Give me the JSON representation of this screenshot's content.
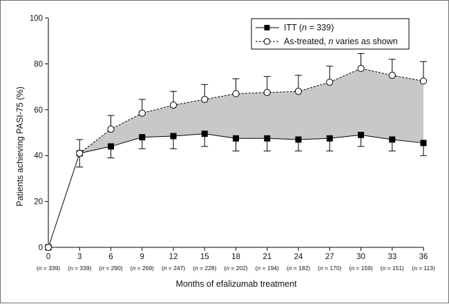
{
  "chart_data": {
    "type": "line",
    "xlabel": "Months of efalizumab treatment",
    "ylabel": "Patients achieving PASI-75 (%)",
    "xlim": [
      0,
      36
    ],
    "ylim": [
      0,
      100
    ],
    "x": [
      0,
      3,
      6,
      9,
      12,
      15,
      18,
      21,
      24,
      27,
      30,
      33,
      36
    ],
    "x_tick_labels": [
      "0",
      "3",
      "6",
      "9",
      "12",
      "15",
      "18",
      "21",
      "24",
      "27",
      "30",
      "33",
      "36"
    ],
    "y_ticks": [
      0,
      20,
      40,
      60,
      80,
      100
    ],
    "n_labels": [
      "(n = 339)",
      "(n = 339)",
      "(n = 290)",
      "(n = 269)",
      "(n = 247)",
      "(n = 228)",
      "(n = 202)",
      "(n = 194)",
      "(n = 182)",
      "(n = 170)",
      "(n = 159)",
      "(n = 151)",
      "(n = 113)"
    ],
    "series": [
      {
        "name": "ITT (n = 339)",
        "marker": "filled-square",
        "line": "solid",
        "values": [
          0,
          41,
          44,
          48,
          48.5,
          49.5,
          47.5,
          47.5,
          47,
          47.5,
          49,
          47,
          45.5
        ],
        "error_down": [
          0,
          6,
          5,
          5,
          5.5,
          5.5,
          5.5,
          5.5,
          5,
          5.5,
          5,
          5,
          5.5
        ]
      },
      {
        "name": "As-treated, n varies as shown",
        "marker": "open-circle",
        "line": "dashed",
        "values": [
          0,
          41,
          51.5,
          58.5,
          62,
          64.5,
          67,
          67.5,
          68,
          72,
          78,
          75,
          72.5
        ],
        "error_up": [
          0,
          6,
          6,
          6,
          6,
          6.5,
          6.5,
          7,
          7,
          7,
          6.5,
          7,
          8.5
        ]
      }
    ],
    "shaded_region": "between series",
    "legend": {
      "position": "top-right",
      "itt": {
        "pre": "ITT (",
        "n": "n",
        "post": " = 339)"
      },
      "as_treated": {
        "pre": "As-treated, ",
        "n": "n",
        "post": " varies as shown"
      }
    },
    "colors": {
      "fill": "#c8c8c8",
      "line": "#000000",
      "frame": "#6f6f6f"
    }
  }
}
